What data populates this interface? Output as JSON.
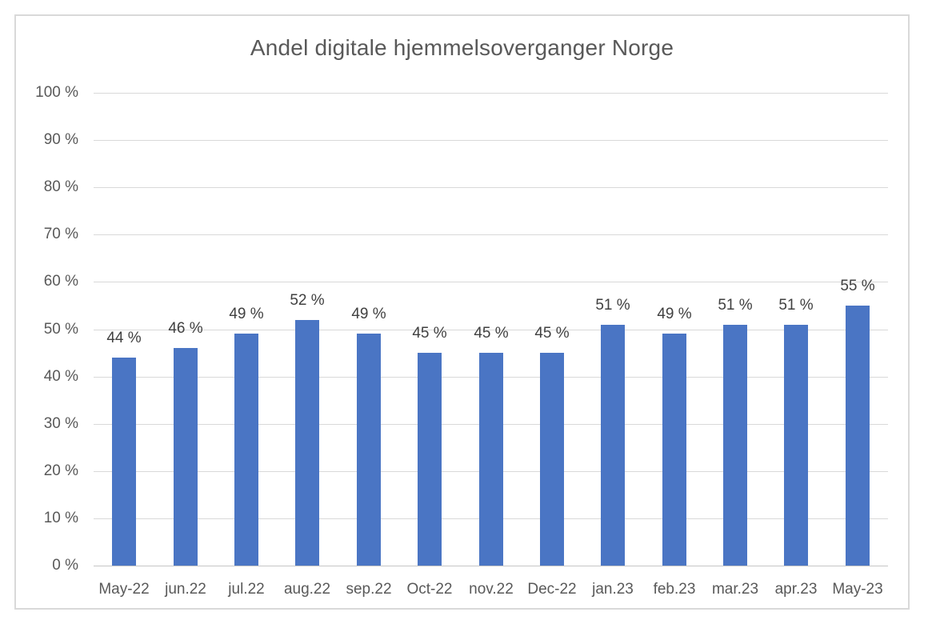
{
  "chart_data": {
    "type": "bar",
    "title": "Andel digitale hjemmelsoverganger Norge",
    "categories": [
      "May-22",
      "jun.22",
      "jul.22",
      "aug.22",
      "sep.22",
      "Oct-22",
      "nov.22",
      "Dec-22",
      "jan.23",
      "feb.23",
      "mar.23",
      "apr.23",
      "May-23"
    ],
    "values": [
      44,
      46,
      49,
      52,
      49,
      45,
      45,
      45,
      51,
      49,
      51,
      51,
      55
    ],
    "data_labels": [
      "44 %",
      "46 %",
      "49 %",
      "52 %",
      "49 %",
      "45 %",
      "45 %",
      "45 %",
      "51 %",
      "49 %",
      "51 %",
      "51 %",
      "55 %"
    ],
    "y_tick_labels": [
      "0 %",
      "10 %",
      "20 %",
      "30 %",
      "40 %",
      "50 %",
      "60 %",
      "70 %",
      "80 %",
      "90 %",
      "100 %"
    ],
    "y_tick_values": [
      0,
      10,
      20,
      30,
      40,
      50,
      60,
      70,
      80,
      90,
      100
    ],
    "ylim": [
      0,
      100
    ],
    "xlabel": "",
    "ylabel": "",
    "grid": true,
    "legend": "none",
    "colors": {
      "bar": "#4a75c4",
      "title_text": "#595959",
      "axis_text": "#595959",
      "data_label_text": "#404040",
      "gridline": "#d9d9d9",
      "axis_line": "#c6c6c6",
      "frame_border": "#d9d9d9",
      "background": "#ffffff"
    }
  }
}
